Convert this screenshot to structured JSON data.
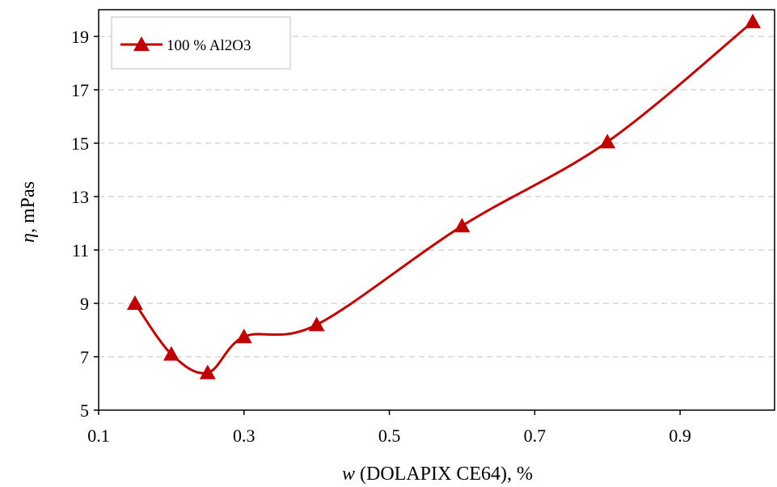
{
  "chart_data": {
    "type": "line",
    "xlabel_italic": "w",
    "xlabel_rest": " (DOLAPIX CE64), %",
    "ylabel_italic": "η",
    "ylabel_rest": ",  mPas",
    "xlim": [
      0.1,
      1.03
    ],
    "ylim": [
      5,
      20
    ],
    "xticks": [
      0.1,
      0.3,
      0.5,
      0.7,
      0.9
    ],
    "xtick_labels": [
      "0.1",
      "0.3",
      "0.5",
      "0.7",
      "0.9"
    ],
    "yticks": [
      5,
      7,
      9,
      11,
      13,
      15,
      17,
      19
    ],
    "ytick_labels": [
      "5",
      "7",
      "9",
      "11",
      "13",
      "15",
      "17",
      "19"
    ],
    "grid": "horizontal-dashed",
    "legend_position": "top-left",
    "series": [
      {
        "name": "100 % Al2O3",
        "color": "#c00000",
        "marker": "triangle",
        "smooth": true,
        "x": [
          0.15,
          0.2,
          0.25,
          0.3,
          0.4,
          0.6,
          0.8,
          1.0
        ],
        "y": [
          9.0,
          7.1,
          6.4,
          7.75,
          8.2,
          11.9,
          15.05,
          19.55
        ]
      }
    ]
  }
}
